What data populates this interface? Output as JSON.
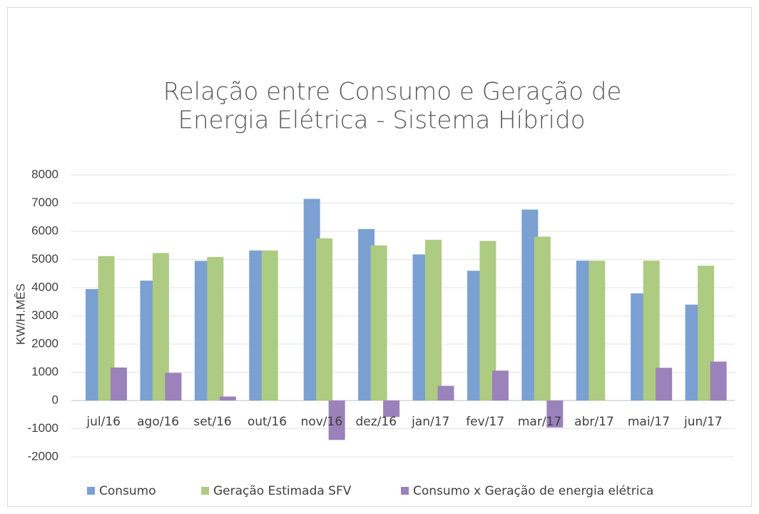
{
  "chart_data": {
    "type": "bar",
    "title": [
      "Relação entre Consumo e Geração de",
      "Energia Elétrica - Sistema Híbrido"
    ],
    "y_label": "KW/H.MÊS",
    "categories": [
      "jul/16",
      "ago/16",
      "set/16",
      "out/16",
      "nov/16",
      "dez/16",
      "jan/17",
      "fev/17",
      "mar/17",
      "abr/17",
      "mai/17",
      "jun/17"
    ],
    "series": [
      {
        "name": "Consumo",
        "color": "#7ba0d2",
        "values": [
          3950,
          4250,
          4950,
          5320,
          7150,
          6080,
          5180,
          4600,
          6770,
          4960,
          3800,
          3400
        ]
      },
      {
        "name": "Geração Estimada SFV",
        "color": "#aecb82",
        "values": [
          5120,
          5230,
          5090,
          5320,
          5750,
          5500,
          5700,
          5660,
          5810,
          4960,
          4960,
          4780
        ]
      },
      {
        "name": "Consumo x Geração de energia elétrica",
        "color": "#9b82bb",
        "values": [
          1170,
          980,
          140,
          0,
          -1400,
          -580,
          520,
          1060,
          -960,
          0,
          1160,
          1380
        ]
      }
    ],
    "ylim": [
      -2000,
      8000
    ],
    "yticks": [
      -2000,
      -1000,
      0,
      1000,
      2000,
      3000,
      4000,
      5000,
      6000,
      7000,
      8000
    ],
    "grid": true,
    "legend": "bottom"
  }
}
